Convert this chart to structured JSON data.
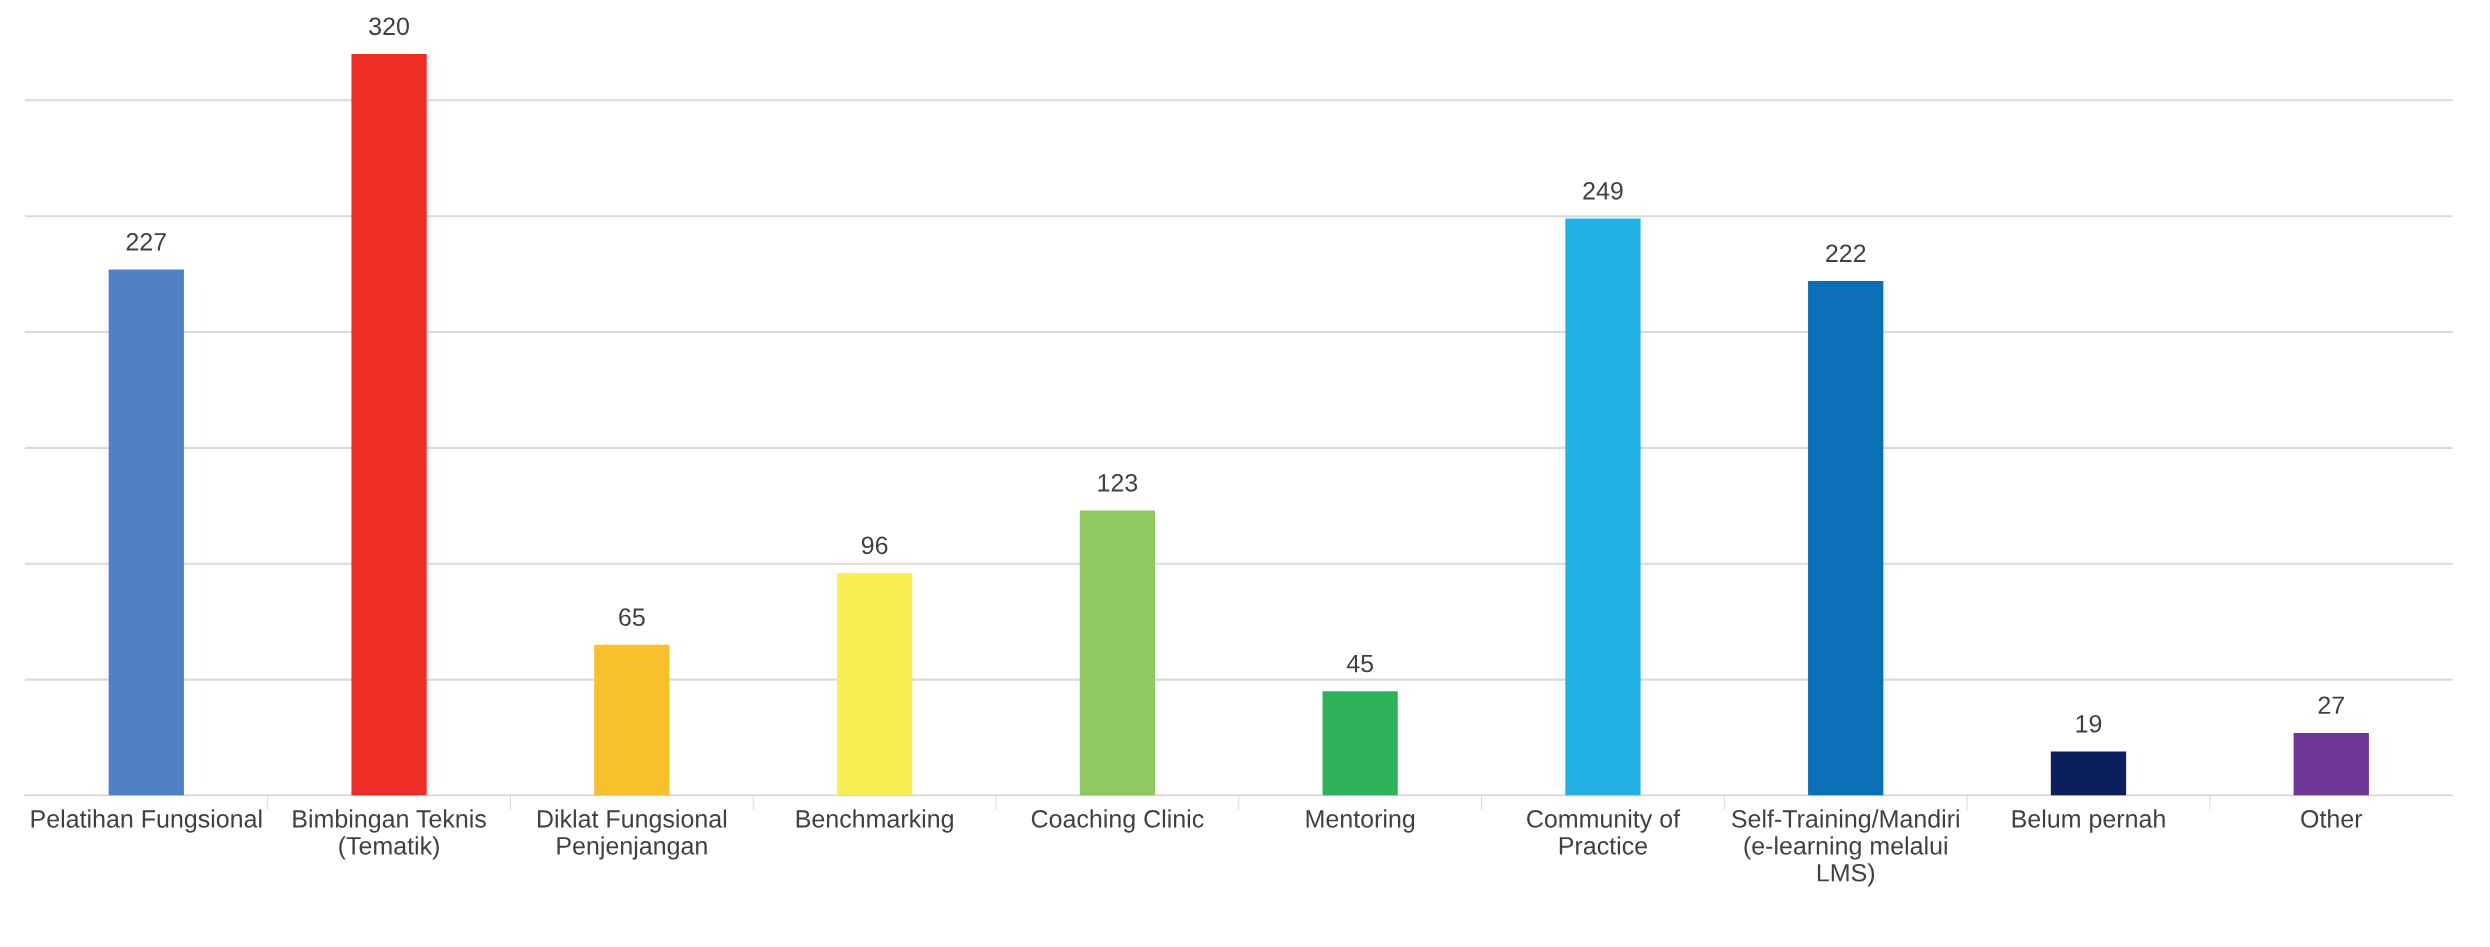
{
  "chart_data": {
    "type": "bar",
    "categories": [
      "Pelatihan Fungsional",
      "Bimbingan Teknis\n(Tematik)",
      "Diklat Fungsional\nPenjenjangan",
      "Benchmarking",
      "Coaching Clinic",
      "Mentoring",
      "Community of\nPractice",
      "Self-Training/Mandiri\n(e-learning melalui\nLMS)",
      "Belum pernah",
      "Other"
    ],
    "values": [
      227,
      320,
      65,
      96,
      123,
      45,
      249,
      222,
      19,
      27
    ],
    "colors": [
      "#5081c6",
      "#ee2d27",
      "#f9c02d",
      "#f8ed52",
      "#90c862",
      "#2fb25a",
      "#23b1e6",
      "#0a6fb7",
      "#0a1f5c",
      "#6c3596"
    ],
    "data_labels": true,
    "yticks": [
      {
        "value": 0,
        "label": null
      },
      {
        "value": 50,
        "label": null
      },
      {
        "value": 100,
        "label": null
      },
      {
        "value": 150,
        "label": null
      },
      {
        "value": 200,
        "label": null
      },
      {
        "value": 250,
        "label": null
      },
      {
        "value": 300,
        "label": null
      }
    ],
    "grid": "y",
    "tick_labels": "x"
  }
}
